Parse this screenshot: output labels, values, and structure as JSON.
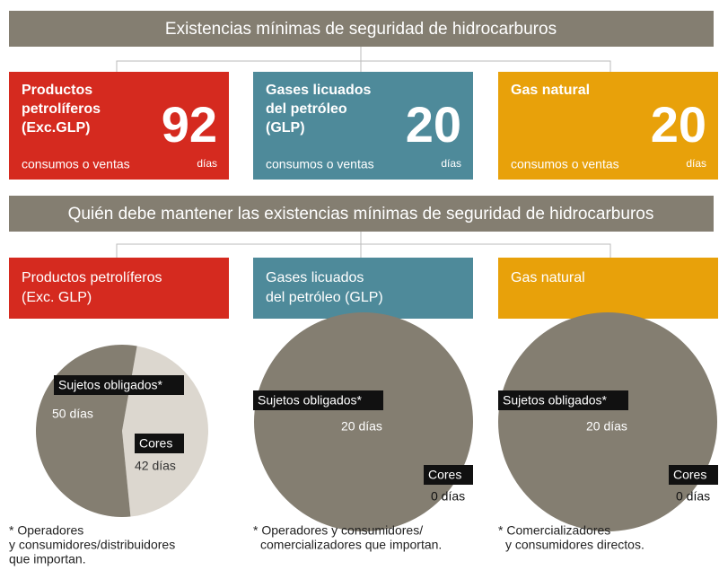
{
  "header1": "Existencias mínimas de seguridad de hidrocarburos",
  "cards": [
    {
      "label_lines": [
        "Productos",
        "petrolíferos",
        "(Exc.GLP)"
      ],
      "value": 92,
      "sub": "consumos o ventas",
      "days": "días",
      "color": "#d52a1f"
    },
    {
      "label_lines": [
        "Gases licuados",
        "del petróleo",
        "(GLP)"
      ],
      "value": 20,
      "sub": "consumos o ventas",
      "days": "días",
      "color": "#4e8a9a"
    },
    {
      "label_lines": [
        "Gas natural"
      ],
      "value": 20,
      "sub": "consumos o ventas",
      "days": "días",
      "color": "#e8a10a"
    }
  ],
  "header2": "Quién debe mantener las existencias mínimas de seguridad de hidrocarburos",
  "sections": [
    {
      "label_lines": [
        "Productos petrolíferos",
        "(Exc. GLP)"
      ],
      "color": "#d52a1f",
      "pie": {
        "type": "pie",
        "slices": [
          {
            "name": "Sujetos obligados*",
            "value": 50,
            "value_label": "50 días",
            "color": "#847e71"
          },
          {
            "name": "Cores",
            "value": 42,
            "value_label": "42 días",
            "color": "#dcd7cf"
          }
        ]
      },
      "note_lines": [
        "* Operadores",
        "y consumidores/distribuidores",
        "que importan."
      ]
    },
    {
      "label_lines": [
        "Gases licuados",
        "del petróleo (GLP)"
      ],
      "color": "#4e8a9a",
      "pie": {
        "type": "pie",
        "slices": [
          {
            "name": "Sujetos obligados*",
            "value": 20,
            "value_label": "20 días",
            "color": "#847e71"
          },
          {
            "name": "Cores",
            "value": 0,
            "value_label": "0 días",
            "color": "#dcd7cf"
          }
        ]
      },
      "note_lines": [
        "* Operadores y consumidores/",
        "comercializadores que importan."
      ]
    },
    {
      "label_lines": [
        "Gas natural"
      ],
      "color": "#e8a10a",
      "pie": {
        "type": "pie",
        "slices": [
          {
            "name": "Sujetos obligados*",
            "value": 20,
            "value_label": "20 días",
            "color": "#847e71"
          },
          {
            "name": "Cores",
            "value": 0,
            "value_label": "0 días",
            "color": "#dcd7cf"
          }
        ]
      },
      "note_lines": [
        "* Comercializadores",
        "y consumidores directos."
      ]
    }
  ]
}
